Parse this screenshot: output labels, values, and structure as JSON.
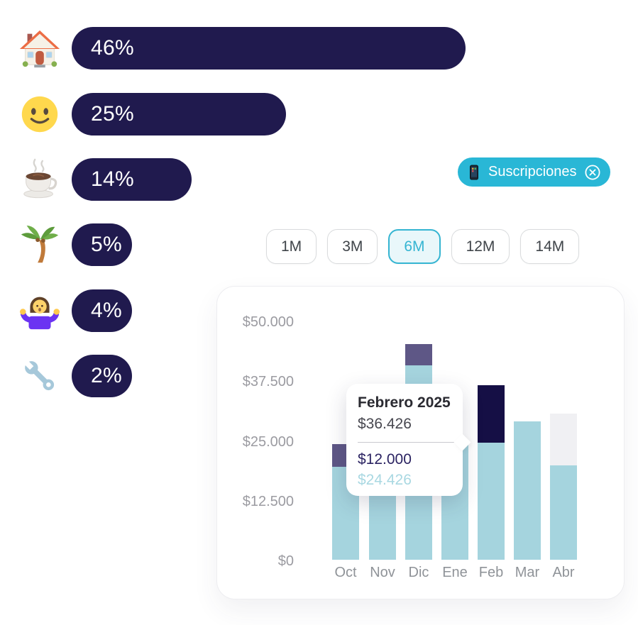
{
  "left_chart": {
    "pill_color": "#201a4e",
    "text_color": "#ffffff",
    "items": [
      {
        "icon": "house-emoji",
        "percent": "46%",
        "value": 46
      },
      {
        "icon": "smiling-face-emoji",
        "percent": "25%",
        "value": 25
      },
      {
        "icon": "hot-beverage-emoji",
        "percent": "14%",
        "value": 14
      },
      {
        "icon": "palm-tree-emoji",
        "percent": "5%",
        "value": 5
      },
      {
        "icon": "woman-shrugging-emoji",
        "percent": "4%",
        "value": 4
      },
      {
        "icon": "wrench-emoji",
        "percent": "2%",
        "value": 2
      }
    ]
  },
  "filter_chip": {
    "label": "Suscripciones",
    "icon": "mobile-phone-icon",
    "close_icon": "circle-x-icon",
    "background": "#29b7d6",
    "text_color": "#ffffff"
  },
  "range_selector": {
    "options": [
      "1M",
      "3M",
      "6M",
      "12M",
      "14M"
    ],
    "selected": "6M",
    "accent_color": "#35b5d2"
  },
  "chart_data": {
    "type": "bar",
    "stacked": true,
    "categories": [
      "Oct",
      "Nov",
      "Dic",
      "Ene",
      "Feb",
      "Mar",
      "Abr"
    ],
    "y_tick_labels": [
      "$50.000",
      "$37.500",
      "$25.000",
      "$12.500",
      "$0"
    ],
    "ylim": [
      0,
      50000
    ],
    "grid": false,
    "legend": false,
    "series": [
      {
        "name": "base",
        "color": "#a5d4de",
        "values": [
          19400,
          26000,
          40600,
          24000,
          24426,
          29000,
          19800
        ]
      },
      {
        "name": "highlight",
        "colors": [
          "#5e5786",
          null,
          "#5e5786",
          null,
          "#150f45",
          null,
          "#f0f0f3"
        ],
        "values": [
          4700,
          0,
          4500,
          0,
          12000,
          0,
          10800
        ]
      }
    ],
    "highlighted_category": "Feb"
  },
  "tooltip": {
    "title": "Febrero 2025",
    "total": "$36.426",
    "breakdown": [
      {
        "amount": "$12.000",
        "color": "#2b2362"
      },
      {
        "amount": "$24.426",
        "color": "#a9d8e2"
      }
    ]
  }
}
